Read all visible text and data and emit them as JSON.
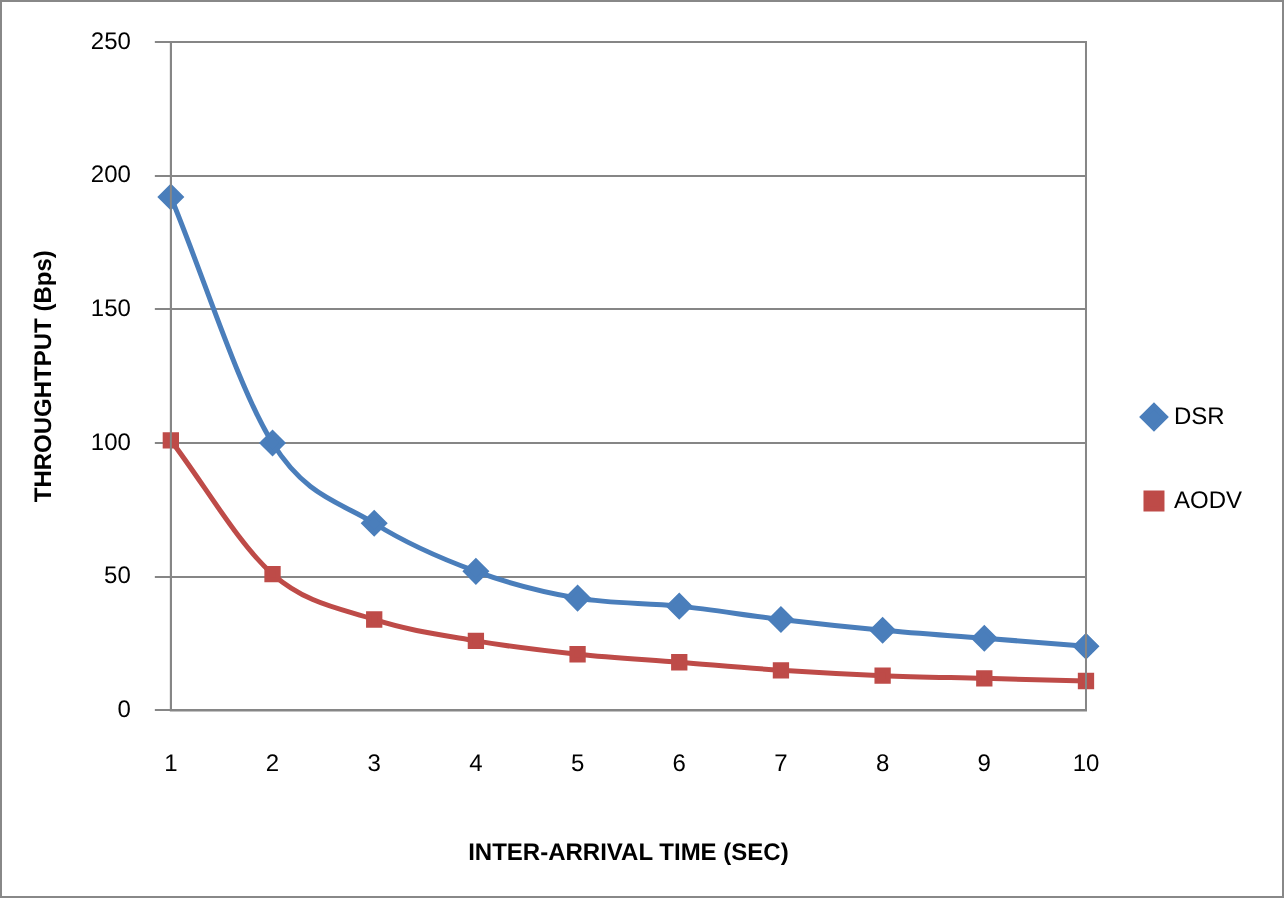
{
  "chart_data": {
    "type": "line",
    "xlabel": "INTER-ARRIVAL TIME (SEC)",
    "ylabel": "THROUGHTPUT (Bps)",
    "categories": [
      "1",
      "2",
      "3",
      "4",
      "5",
      "6",
      "7",
      "8",
      "9",
      "10"
    ],
    "series": [
      {
        "name": "DSR",
        "color": "#4a7ebb",
        "marker": "diamond",
        "values": [
          192,
          100,
          70,
          52,
          42,
          39,
          34,
          30,
          27,
          24
        ]
      },
      {
        "name": "AODV",
        "color": "#be4b48",
        "marker": "square",
        "values": [
          101,
          51,
          34,
          26,
          21,
          18,
          15,
          13,
          12,
          11
        ]
      }
    ],
    "ylim": [
      0,
      250
    ],
    "yticks": [
      0,
      50,
      100,
      150,
      200,
      250
    ],
    "grid": "y",
    "legend": "right"
  }
}
